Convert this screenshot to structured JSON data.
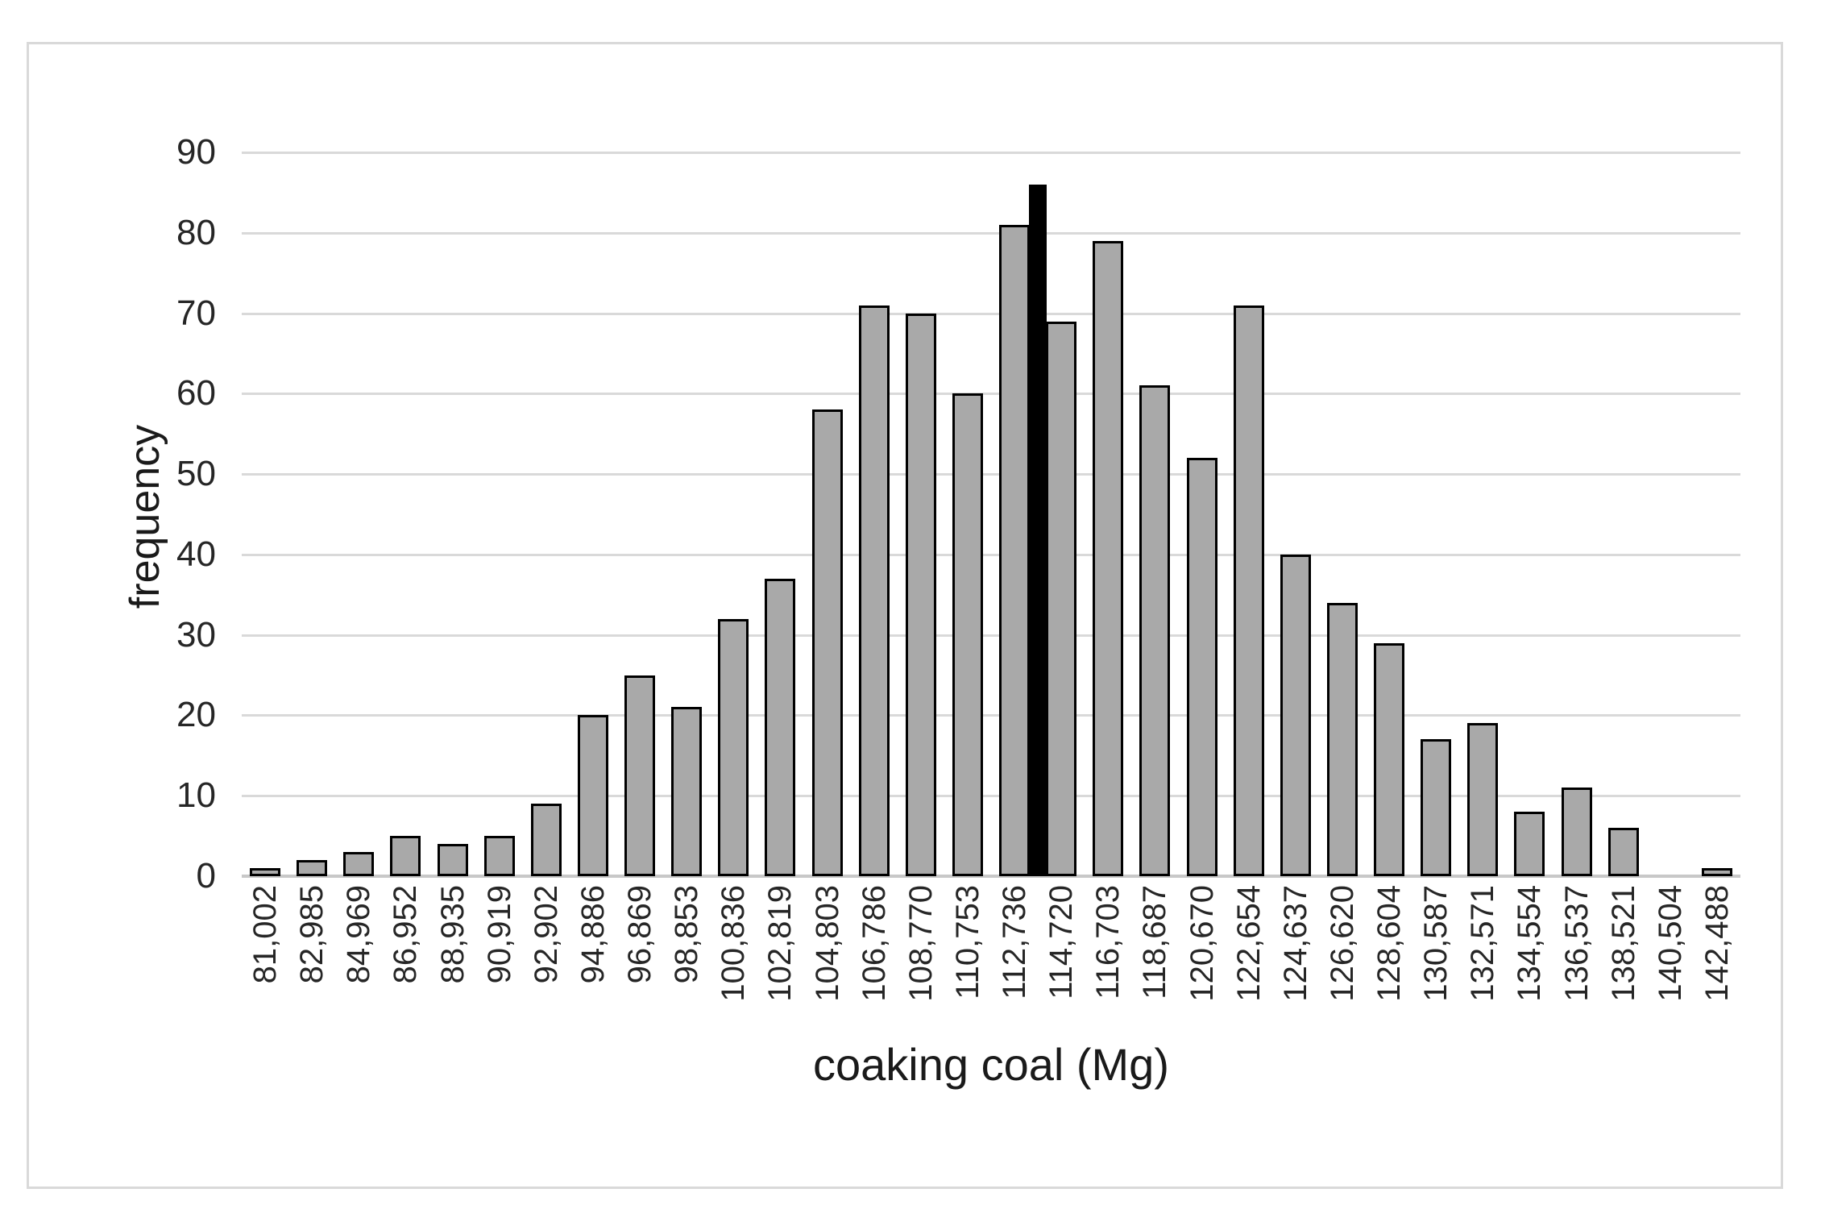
{
  "figure": {
    "background": "#ffffff",
    "frame_color": "#d9d9d9"
  },
  "chart_data": {
    "type": "bar",
    "title": "",
    "xlabel": "coaking coal (Mg)",
    "ylabel": "frequency",
    "categories": [
      "81,002",
      "82,985",
      "84,969",
      "86,952",
      "88,935",
      "90,919",
      "92,902",
      "94,886",
      "96,869",
      "98,853",
      "100,836",
      "102,819",
      "104,803",
      "106,786",
      "108,770",
      "110,753",
      "112,736",
      "114,720",
      "116,703",
      "118,687",
      "120,670",
      "122,654",
      "124,637",
      "126,620",
      "128,604",
      "130,587",
      "132,571",
      "134,554",
      "136,537",
      "138,521",
      "140,504",
      "142,488"
    ],
    "values": [
      1,
      2,
      3,
      5,
      4,
      5,
      9,
      20,
      25,
      21,
      32,
      37,
      58,
      71,
      70,
      60,
      81,
      69,
      79,
      61,
      52,
      71,
      40,
      34,
      29,
      17,
      19,
      8,
      11,
      6,
      0,
      1
    ],
    "marker": {
      "description": "narrow solid black vertical bar between 112,736 and 114,720",
      "value": 86,
      "after_category_index": 16
    },
    "y_axis": {
      "min": 0,
      "max": 90,
      "tick_step": 10,
      "yticks": [
        "0",
        "10",
        "20",
        "30",
        "40",
        "50",
        "60",
        "70",
        "80",
        "90"
      ]
    },
    "grid": "horizontal",
    "legend": "none",
    "colors": {
      "bar_fill": "#a9a9a9",
      "bar_border": "#000000",
      "marker_fill": "#000000",
      "gridline": "#d9d9d9",
      "axis_line": "#c8c8c8",
      "tick_text": "#262626",
      "title_text": "#1a1a1a"
    }
  }
}
